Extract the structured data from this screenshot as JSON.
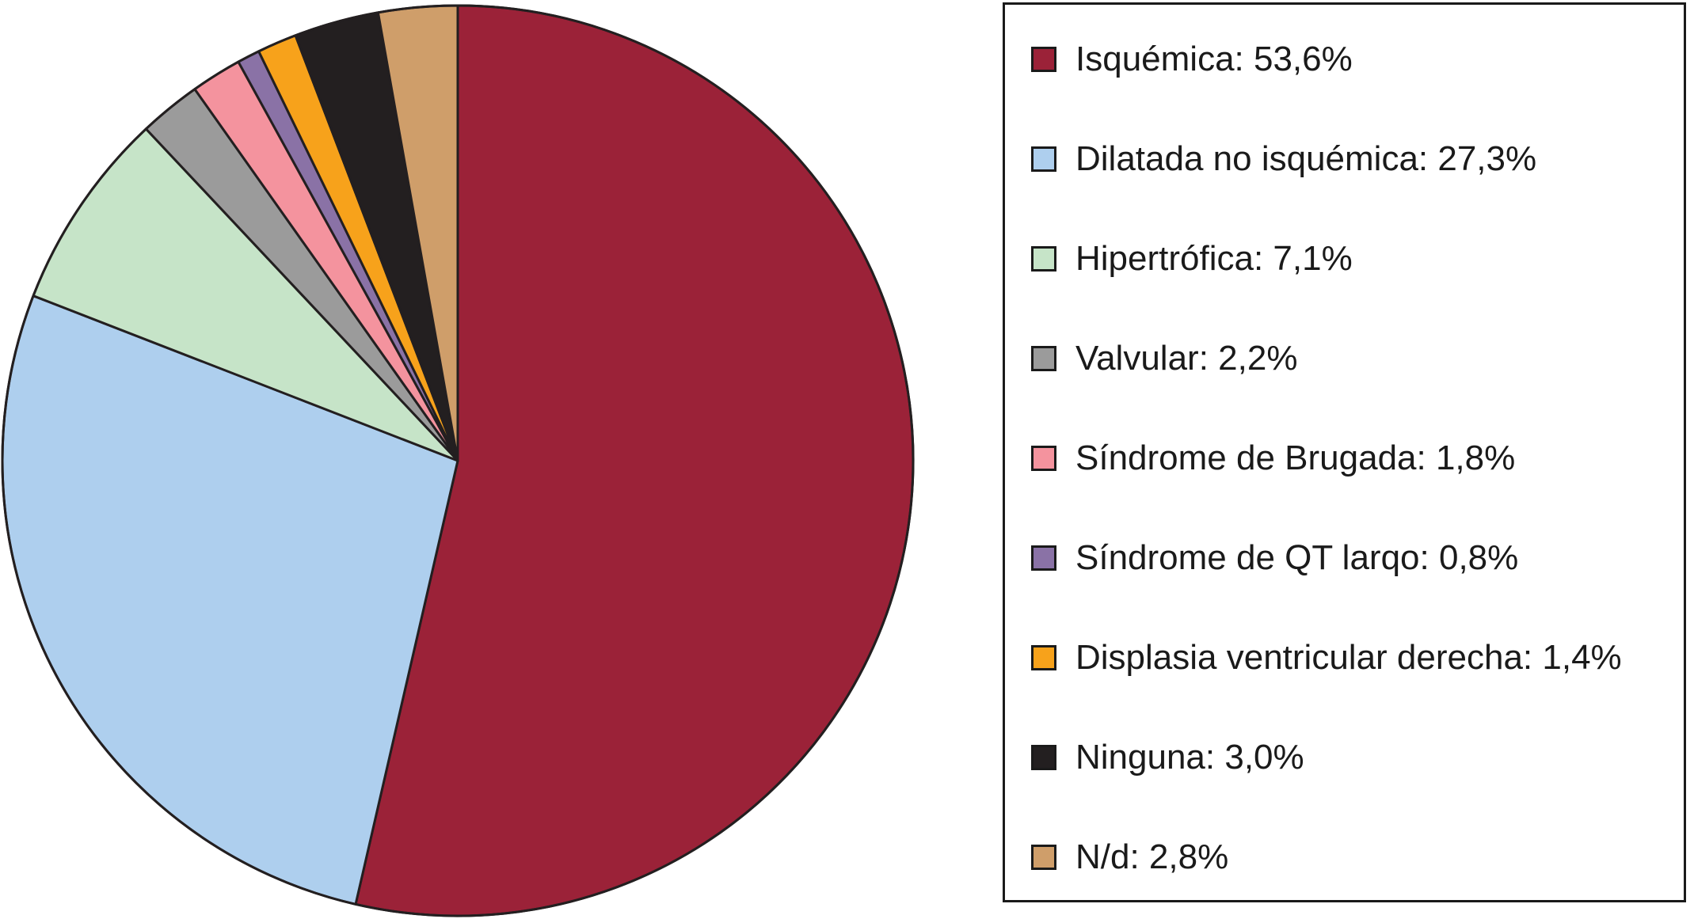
{
  "chart_data": {
    "type": "pie",
    "slices": [
      {
        "label": "Isquémica: 53,6%",
        "value": 53.6,
        "color": "#9b2238"
      },
      {
        "label": "Dilatada no isquémica: 27,3%",
        "value": 27.3,
        "color": "#aecfee"
      },
      {
        "label": "Hipertrófica: 7,1%",
        "value": 7.1,
        "color": "#c6e4c8"
      },
      {
        "label": "Valvular: 2,2%",
        "value": 2.2,
        "color": "#9b9b9b"
      },
      {
        "label": "Síndrome de Brugada: 1,8%",
        "value": 1.8,
        "color": "#f4939e"
      },
      {
        "label": "Síndrome de QT larqo: 0,8%",
        "value": 0.8,
        "color": "#8a72a6"
      },
      {
        "label": "Displasia ventricular derecha: 1,4%",
        "value": 1.4,
        "color": "#f7a21b"
      },
      {
        "label": "Ninguna: 3,0%",
        "value": 3.0,
        "color": "#231f20"
      },
      {
        "label": "N/d: 2,8%",
        "value": 2.8,
        "color": "#cf9e6a"
      }
    ],
    "start_angle": "12 o'clock",
    "direction": "clockwise",
    "legend_position": "right"
  }
}
